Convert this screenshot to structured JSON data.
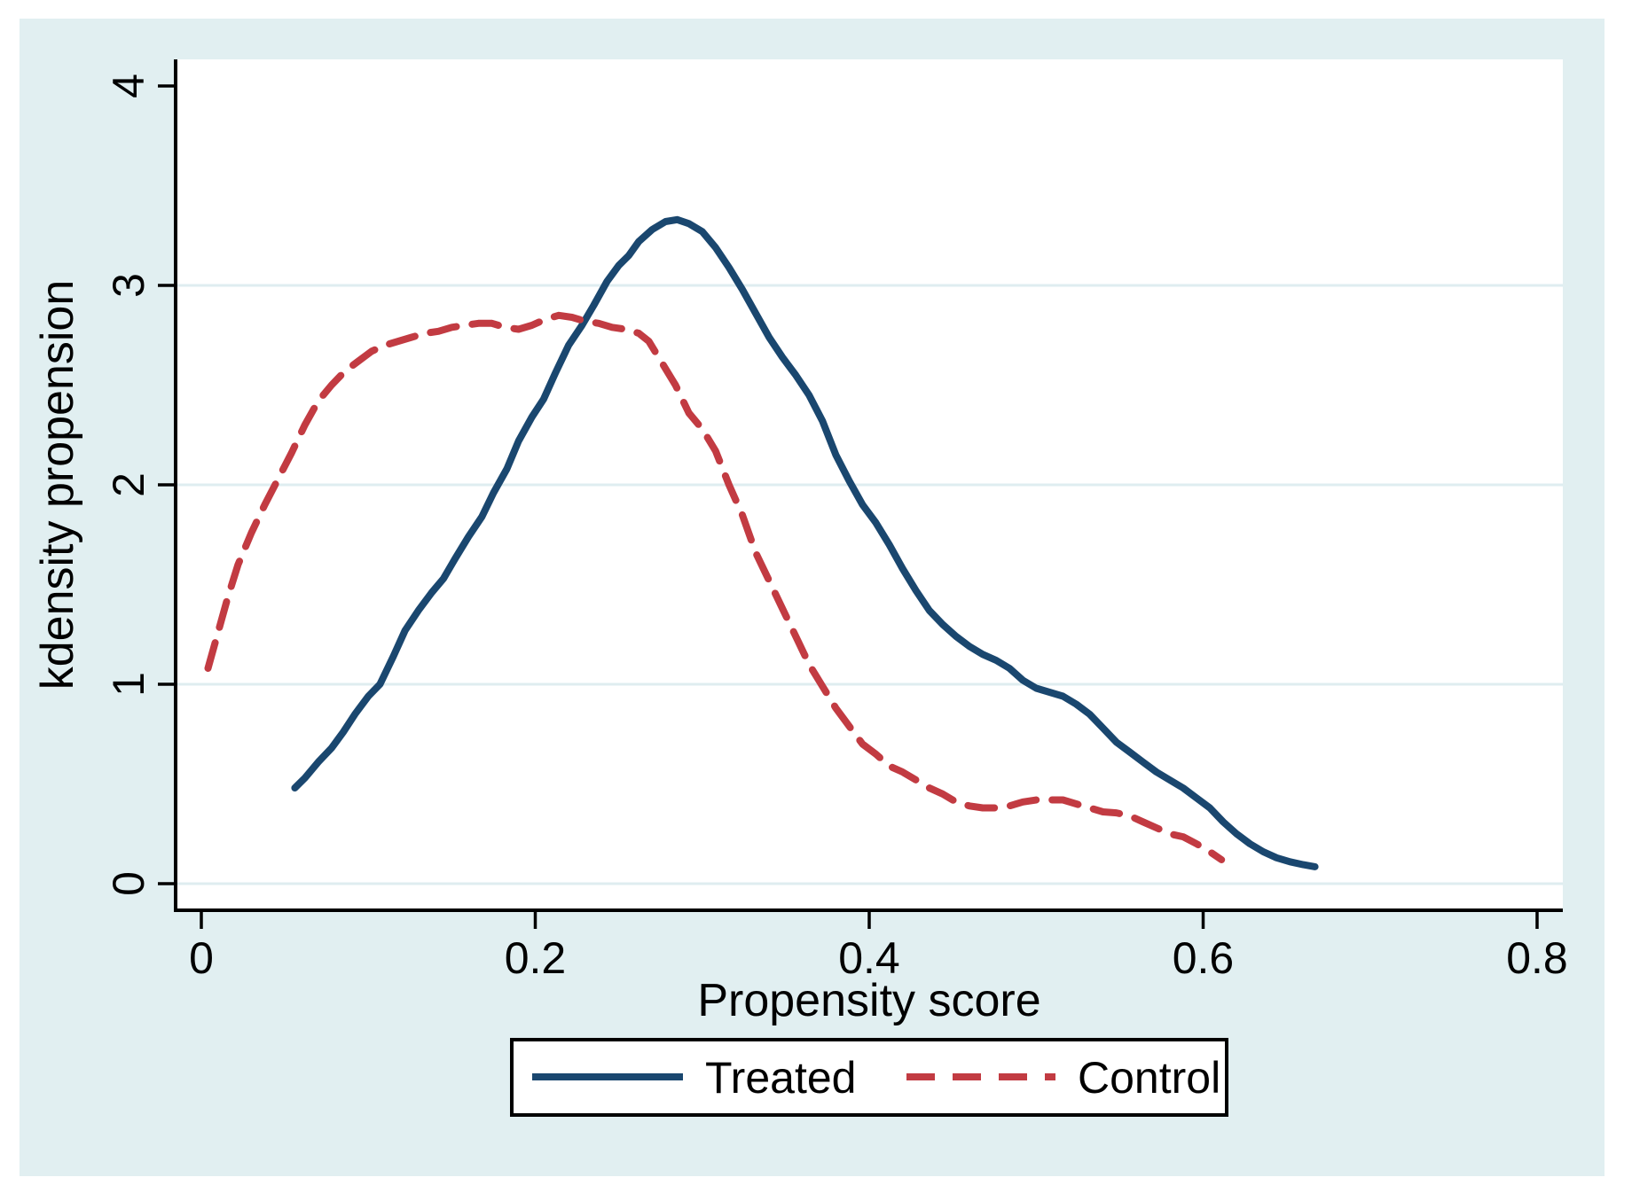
{
  "figure": {
    "canvas_color": "#e1eff1",
    "plot_background": "#ffffff",
    "grid_color": "#dfedf0",
    "axis_color": "#000000",
    "legend_border_color": "#000000",
    "legend_background": "#ffffff"
  },
  "chart_data": {
    "type": "line",
    "title": "",
    "xlabel": "Propensity score",
    "ylabel": "kdensity propension",
    "xlim": [
      -0.015,
      0.815
    ],
    "ylim": [
      -0.13,
      4.13
    ],
    "x_ticks": [
      0,
      0.2,
      0.4,
      0.6,
      0.8
    ],
    "x_tick_labels": [
      "0",
      "0.2",
      "0.4",
      "0.6",
      "0.8"
    ],
    "y_ticks": [
      0,
      1,
      2,
      3,
      4
    ],
    "y_tick_labels": [
      "0",
      "1",
      "2",
      "3",
      "4"
    ],
    "grid": "horizontal",
    "grid_y": [
      0,
      1,
      2,
      3
    ],
    "legend_position": "bottom-center",
    "series": [
      {
        "name": "Treated",
        "color": "#1a476f",
        "style": "solid",
        "points": [
          [
            0.056,
            0.48
          ],
          [
            0.062,
            0.53
          ],
          [
            0.07,
            0.61
          ],
          [
            0.078,
            0.68
          ],
          [
            0.085,
            0.76
          ],
          [
            0.092,
            0.85
          ],
          [
            0.1,
            0.94
          ],
          [
            0.107,
            1.0
          ],
          [
            0.115,
            1.14
          ],
          [
            0.122,
            1.27
          ],
          [
            0.13,
            1.37
          ],
          [
            0.138,
            1.46
          ],
          [
            0.145,
            1.53
          ],
          [
            0.152,
            1.63
          ],
          [
            0.16,
            1.74
          ],
          [
            0.168,
            1.84
          ],
          [
            0.175,
            1.96
          ],
          [
            0.183,
            2.08
          ],
          [
            0.19,
            2.22
          ],
          [
            0.198,
            2.34
          ],
          [
            0.205,
            2.43
          ],
          [
            0.212,
            2.56
          ],
          [
            0.22,
            2.7
          ],
          [
            0.228,
            2.8
          ],
          [
            0.235,
            2.9
          ],
          [
            0.243,
            3.02
          ],
          [
            0.25,
            3.1
          ],
          [
            0.256,
            3.15
          ],
          [
            0.262,
            3.22
          ],
          [
            0.27,
            3.28
          ],
          [
            0.278,
            3.32
          ],
          [
            0.285,
            3.33
          ],
          [
            0.292,
            3.31
          ],
          [
            0.3,
            3.27
          ],
          [
            0.308,
            3.19
          ],
          [
            0.316,
            3.09
          ],
          [
            0.324,
            2.98
          ],
          [
            0.332,
            2.86
          ],
          [
            0.34,
            2.74
          ],
          [
            0.348,
            2.64
          ],
          [
            0.356,
            2.55
          ],
          [
            0.364,
            2.45
          ],
          [
            0.372,
            2.32
          ],
          [
            0.38,
            2.15
          ],
          [
            0.388,
            2.02
          ],
          [
            0.396,
            1.9
          ],
          [
            0.404,
            1.81
          ],
          [
            0.412,
            1.7
          ],
          [
            0.42,
            1.58
          ],
          [
            0.428,
            1.47
          ],
          [
            0.436,
            1.37
          ],
          [
            0.444,
            1.3
          ],
          [
            0.452,
            1.24
          ],
          [
            0.46,
            1.19
          ],
          [
            0.468,
            1.15
          ],
          [
            0.476,
            1.12
          ],
          [
            0.484,
            1.08
          ],
          [
            0.492,
            1.02
          ],
          [
            0.5,
            0.98
          ],
          [
            0.508,
            0.96
          ],
          [
            0.516,
            0.94
          ],
          [
            0.524,
            0.9
          ],
          [
            0.532,
            0.85
          ],
          [
            0.54,
            0.78
          ],
          [
            0.548,
            0.71
          ],
          [
            0.556,
            0.66
          ],
          [
            0.564,
            0.61
          ],
          [
            0.572,
            0.56
          ],
          [
            0.58,
            0.52
          ],
          [
            0.588,
            0.48
          ],
          [
            0.596,
            0.43
          ],
          [
            0.604,
            0.38
          ],
          [
            0.612,
            0.31
          ],
          [
            0.62,
            0.25
          ],
          [
            0.628,
            0.2
          ],
          [
            0.636,
            0.16
          ],
          [
            0.644,
            0.13
          ],
          [
            0.652,
            0.11
          ],
          [
            0.66,
            0.095
          ],
          [
            0.667,
            0.085
          ]
        ]
      },
      {
        "name": "Control",
        "color": "#c23b42",
        "style": "dashed",
        "points": [
          [
            0.004,
            1.08
          ],
          [
            0.01,
            1.26
          ],
          [
            0.016,
            1.44
          ],
          [
            0.022,
            1.6
          ],
          [
            0.03,
            1.76
          ],
          [
            0.038,
            1.9
          ],
          [
            0.046,
            2.03
          ],
          [
            0.054,
            2.16
          ],
          [
            0.062,
            2.3
          ],
          [
            0.07,
            2.42
          ],
          [
            0.078,
            2.5
          ],
          [
            0.086,
            2.57
          ],
          [
            0.094,
            2.62
          ],
          [
            0.102,
            2.67
          ],
          [
            0.11,
            2.7
          ],
          [
            0.118,
            2.72
          ],
          [
            0.126,
            2.74
          ],
          [
            0.134,
            2.76
          ],
          [
            0.142,
            2.77
          ],
          [
            0.15,
            2.79
          ],
          [
            0.158,
            2.8
          ],
          [
            0.166,
            2.81
          ],
          [
            0.174,
            2.81
          ],
          [
            0.182,
            2.79
          ],
          [
            0.19,
            2.78
          ],
          [
            0.198,
            2.8
          ],
          [
            0.206,
            2.83
          ],
          [
            0.214,
            2.85
          ],
          [
            0.222,
            2.84
          ],
          [
            0.23,
            2.82
          ],
          [
            0.238,
            2.81
          ],
          [
            0.246,
            2.79
          ],
          [
            0.254,
            2.78
          ],
          [
            0.262,
            2.76
          ],
          [
            0.268,
            2.72
          ],
          [
            0.276,
            2.61
          ],
          [
            0.284,
            2.5
          ],
          [
            0.292,
            2.36
          ],
          [
            0.3,
            2.28
          ],
          [
            0.308,
            2.17
          ],
          [
            0.316,
            2.0
          ],
          [
            0.324,
            1.85
          ],
          [
            0.332,
            1.66
          ],
          [
            0.34,
            1.52
          ],
          [
            0.348,
            1.38
          ],
          [
            0.356,
            1.24
          ],
          [
            0.364,
            1.1
          ],
          [
            0.372,
            0.99
          ],
          [
            0.38,
            0.88
          ],
          [
            0.388,
            0.79
          ],
          [
            0.396,
            0.7
          ],
          [
            0.404,
            0.65
          ],
          [
            0.412,
            0.59
          ],
          [
            0.42,
            0.56
          ],
          [
            0.428,
            0.52
          ],
          [
            0.436,
            0.48
          ],
          [
            0.444,
            0.45
          ],
          [
            0.452,
            0.41
          ],
          [
            0.46,
            0.39
          ],
          [
            0.468,
            0.38
          ],
          [
            0.476,
            0.38
          ],
          [
            0.484,
            0.39
          ],
          [
            0.492,
            0.41
          ],
          [
            0.5,
            0.42
          ],
          [
            0.508,
            0.42
          ],
          [
            0.516,
            0.42
          ],
          [
            0.524,
            0.4
          ],
          [
            0.532,
            0.38
          ],
          [
            0.54,
            0.36
          ],
          [
            0.548,
            0.355
          ],
          [
            0.556,
            0.34
          ],
          [
            0.564,
            0.31
          ],
          [
            0.572,
            0.28
          ],
          [
            0.58,
            0.25
          ],
          [
            0.588,
            0.235
          ],
          [
            0.596,
            0.2
          ],
          [
            0.604,
            0.16
          ],
          [
            0.611,
            0.12
          ]
        ]
      }
    ]
  }
}
